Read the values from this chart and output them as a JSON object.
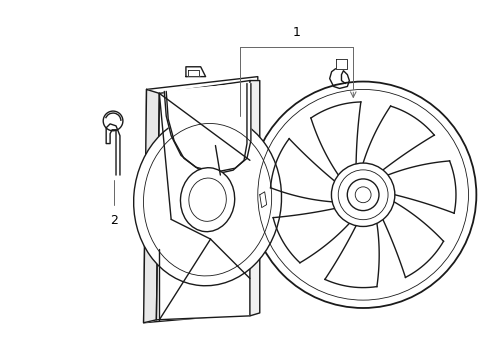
{
  "background_color": "#ffffff",
  "line_color": "#1a1a1a",
  "gray_color": "#666666",
  "lw": 1.0,
  "tlw": 0.6,
  "label1": "1",
  "label2": "2"
}
